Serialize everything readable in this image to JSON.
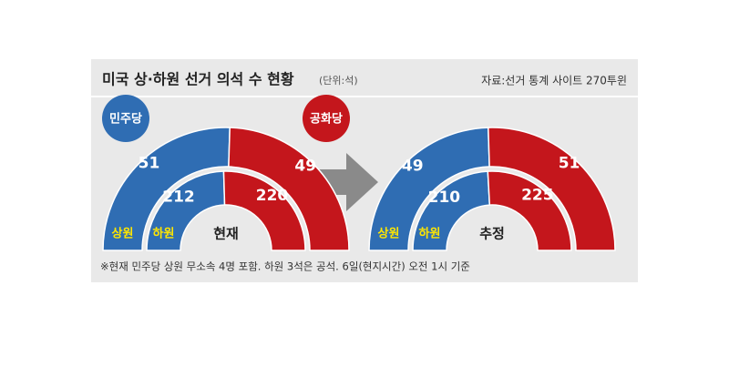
{
  "title": "미국 상·하원 선거 의석 수 현황",
  "unit": "(단위:석)",
  "source": "자료:선거 통계 사이트 270투윈",
  "parties": [
    {
      "name": "민주당",
      "color": "#2f6db3"
    },
    {
      "name": "공화당",
      "color": "#c4161c"
    }
  ],
  "note": "※현재 민주당 상원 무소속 4명 포함. 하원 3석은 공석. 6일(현지시간) 오전 1시 기준",
  "chart_data": [
    {
      "type": "semi-donut",
      "center_label": "현재",
      "series": [
        {
          "name": "상원",
          "values": [
            51,
            49
          ]
        },
        {
          "name": "하원",
          "values": [
            212,
            220
          ]
        }
      ]
    },
    {
      "type": "semi-donut",
      "center_label": "추정",
      "series": [
        {
          "name": "상원",
          "values": [
            49,
            51
          ]
        },
        {
          "name": "하원",
          "values": [
            210,
            225
          ]
        }
      ]
    }
  ]
}
